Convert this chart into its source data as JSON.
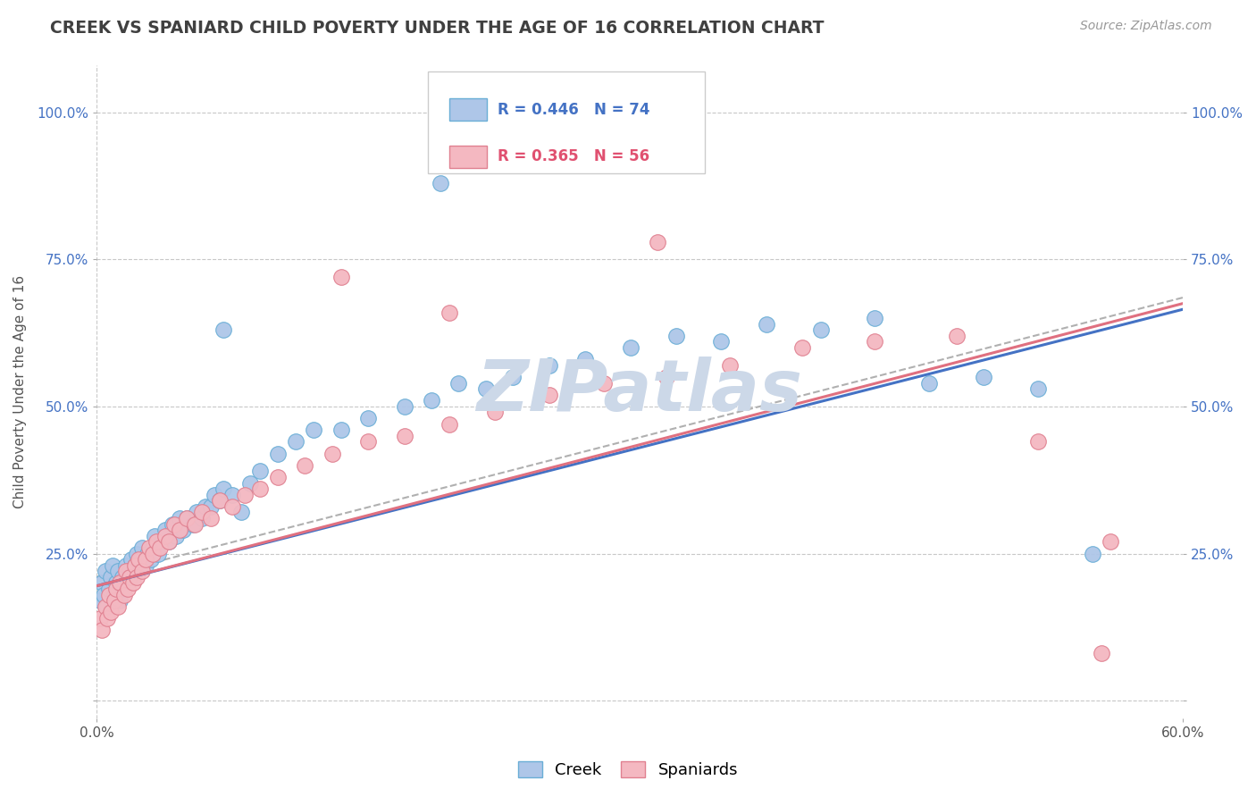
{
  "title": "CREEK VS SPANIARD CHILD POVERTY UNDER THE AGE OF 16 CORRELATION CHART",
  "source_text": "Source: ZipAtlas.com",
  "ylabel": "Child Poverty Under the Age of 16",
  "xlim": [
    0.0,
    0.6
  ],
  "ylim": [
    -0.03,
    1.08
  ],
  "creek_color": "#aec6e8",
  "creek_edge_color": "#6aaed6",
  "spaniard_color": "#f4b8c1",
  "spaniard_edge_color": "#e08090",
  "creek_R": 0.446,
  "creek_N": 74,
  "spaniard_R": 0.365,
  "spaniard_N": 56,
  "legend_creek_text_color": "#4472c4",
  "legend_spaniard_text_color": "#e05070",
  "watermark": "ZIPatlas",
  "watermark_color": "#ccd8e8",
  "creek_line_color": "#4472c4",
  "spaniard_line_color": "#e07080",
  "dashed_line_color": "#b0b0b0",
  "title_color": "#404040",
  "background_color": "#ffffff",
  "grid_color": "#c8c8c8",
  "tick_label_color": "#4472c4",
  "ylabel_color": "#555555",
  "creek_x": [
    0.002,
    0.003,
    0.004,
    0.005,
    0.006,
    0.007,
    0.008,
    0.009,
    0.01,
    0.011,
    0.012,
    0.013,
    0.014,
    0.015,
    0.016,
    0.017,
    0.018,
    0.019,
    0.02,
    0.021,
    0.022,
    0.023,
    0.024,
    0.025,
    0.027,
    0.028,
    0.03,
    0.031,
    0.032,
    0.034,
    0.036,
    0.038,
    0.04,
    0.042,
    0.044,
    0.046,
    0.048,
    0.05,
    0.053,
    0.055,
    0.058,
    0.06,
    0.063,
    0.065,
    0.068,
    0.07,
    0.075,
    0.08,
    0.085,
    0.09,
    0.1,
    0.11,
    0.12,
    0.135,
    0.15,
    0.17,
    0.185,
    0.2,
    0.215,
    0.23,
    0.25,
    0.27,
    0.295,
    0.32,
    0.345,
    0.37,
    0.4,
    0.43,
    0.46,
    0.49,
    0.52,
    0.55,
    0.07,
    0.19
  ],
  "creek_y": [
    0.17,
    0.2,
    0.18,
    0.22,
    0.16,
    0.19,
    0.21,
    0.23,
    0.18,
    0.2,
    0.22,
    0.17,
    0.21,
    0.19,
    0.23,
    0.2,
    0.22,
    0.24,
    0.21,
    0.23,
    0.25,
    0.22,
    0.24,
    0.26,
    0.23,
    0.25,
    0.24,
    0.26,
    0.28,
    0.25,
    0.27,
    0.29,
    0.27,
    0.3,
    0.28,
    0.31,
    0.29,
    0.31,
    0.3,
    0.32,
    0.31,
    0.33,
    0.33,
    0.35,
    0.34,
    0.36,
    0.35,
    0.32,
    0.37,
    0.39,
    0.42,
    0.44,
    0.46,
    0.46,
    0.48,
    0.5,
    0.51,
    0.54,
    0.53,
    0.55,
    0.57,
    0.58,
    0.6,
    0.62,
    0.61,
    0.64,
    0.63,
    0.65,
    0.54,
    0.55,
    0.53,
    0.25,
    0.63,
    0.88
  ],
  "spaniard_x": [
    0.002,
    0.003,
    0.005,
    0.006,
    0.007,
    0.008,
    0.01,
    0.011,
    0.012,
    0.013,
    0.015,
    0.016,
    0.017,
    0.018,
    0.02,
    0.021,
    0.022,
    0.023,
    0.025,
    0.027,
    0.029,
    0.031,
    0.033,
    0.035,
    0.038,
    0.04,
    0.043,
    0.046,
    0.05,
    0.054,
    0.058,
    0.063,
    0.068,
    0.075,
    0.082,
    0.09,
    0.1,
    0.115,
    0.13,
    0.15,
    0.17,
    0.195,
    0.22,
    0.25,
    0.28,
    0.315,
    0.35,
    0.39,
    0.43,
    0.475,
    0.52,
    0.56,
    0.135,
    0.195,
    0.31,
    0.555
  ],
  "spaniard_y": [
    0.14,
    0.12,
    0.16,
    0.14,
    0.18,
    0.15,
    0.17,
    0.19,
    0.16,
    0.2,
    0.18,
    0.22,
    0.19,
    0.21,
    0.2,
    0.23,
    0.21,
    0.24,
    0.22,
    0.24,
    0.26,
    0.25,
    0.27,
    0.26,
    0.28,
    0.27,
    0.3,
    0.29,
    0.31,
    0.3,
    0.32,
    0.31,
    0.34,
    0.33,
    0.35,
    0.36,
    0.38,
    0.4,
    0.42,
    0.44,
    0.45,
    0.47,
    0.49,
    0.52,
    0.54,
    0.55,
    0.57,
    0.6,
    0.61,
    0.62,
    0.44,
    0.27,
    0.72,
    0.66,
    0.78,
    0.08
  ],
  "creek_line_x0": 0.0,
  "creek_line_y0": 0.195,
  "creek_line_x1": 0.6,
  "creek_line_y1": 0.665,
  "spaniard_line_x0": 0.0,
  "spaniard_line_y0": 0.195,
  "spaniard_line_x1": 0.6,
  "spaniard_line_y1": 0.675,
  "dashed_line_x0": 0.0,
  "dashed_line_y0": 0.21,
  "dashed_line_x1": 0.6,
  "dashed_line_y1": 0.685
}
